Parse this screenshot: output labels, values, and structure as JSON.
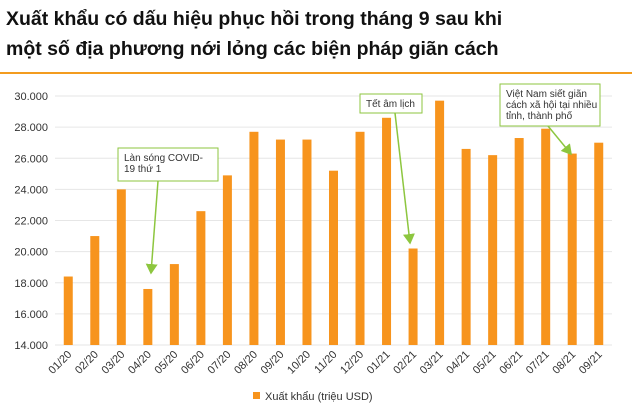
{
  "chart_data": {
    "type": "bar",
    "title": [
      "Xuất khẩu có dấu hiệu phục hồi trong tháng 9 sau khi",
      "một số địa phương nới lỏng các biện pháp giãn cách"
    ],
    "categories": [
      "01/20",
      "02/20",
      "03/20",
      "04/20",
      "05/20",
      "06/20",
      "07/20",
      "08/20",
      "09/20",
      "10/20",
      "11/20",
      "12/20",
      "01/21",
      "02/21",
      "03/21",
      "04/21",
      "05/21",
      "06/21",
      "07/21",
      "08/21",
      "09/21"
    ],
    "series": [
      {
        "name": "Xuất khẩu (triệu USD)",
        "color": "#f7941d",
        "values": [
          18400,
          21000,
          24000,
          17600,
          19200,
          22600,
          24900,
          27700,
          27200,
          27200,
          25200,
          27700,
          28600,
          20200,
          29700,
          26600,
          26200,
          27300,
          27900,
          26300,
          27000
        ]
      }
    ],
    "ylim": [
      14000,
      30000
    ],
    "yticks": [
      {
        "value": 14000,
        "label": "14.000"
      },
      {
        "value": 16000,
        "label": "16.000"
      },
      {
        "value": 18000,
        "label": "18.000"
      },
      {
        "value": 20000,
        "label": "20.000"
      },
      {
        "value": 22000,
        "label": "22.000"
      },
      {
        "value": 24000,
        "label": "24.000"
      },
      {
        "value": 26000,
        "label": "26.000"
      },
      {
        "value": 28000,
        "label": "28.000"
      },
      {
        "value": 30000,
        "label": "30.000"
      }
    ],
    "grid": true,
    "legend": "bottom",
    "annotations": [
      {
        "lines": [
          "Làn sóng COVID-",
          "19 thứ 1"
        ]
      },
      {
        "lines": [
          "Tết âm lịch"
        ]
      },
      {
        "lines": [
          "Việt Nam siết giãn",
          "cách xã hội tại nhiều",
          "tỉnh, thành phố"
        ]
      }
    ]
  }
}
